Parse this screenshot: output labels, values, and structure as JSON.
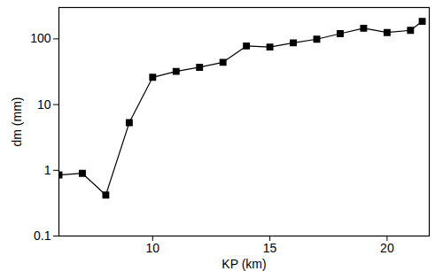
{
  "chart_data": {
    "type": "line",
    "x_label": "KP (km)",
    "y_label": "dm (mm)",
    "x": [
      6,
      7,
      8,
      9,
      10,
      11,
      12,
      13,
      14,
      15,
      16,
      17,
      18,
      19,
      20,
      21,
      21.5
    ],
    "values": [
      0.85,
      0.9,
      0.42,
      5.3,
      26,
      32,
      37,
      44,
      78,
      75,
      87,
      99,
      120,
      145,
      125,
      135,
      185
    ],
    "color": "#000000",
    "marker": "square",
    "log": "y",
    "xlim": [
      6,
      21.8
    ],
    "ylim": [
      0.1,
      300
    ],
    "xticks": [
      10,
      15,
      20
    ],
    "yticks": [
      0.1,
      1,
      10,
      100
    ],
    "grid": false
  }
}
